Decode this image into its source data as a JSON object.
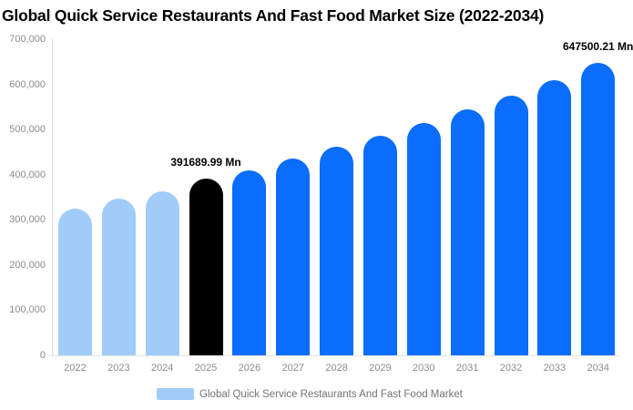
{
  "title": "Global Quick Service Restaurants And Fast Food Market Size (2022-2034)",
  "colors": {
    "historical_bar": "#a0ccfa",
    "base_year_bar": "#000000",
    "forecast_bar": "#0a6dfb",
    "axis_text": "#8c8c8c",
    "axis_line": "#dcdcdc",
    "label_text": "#000000",
    "legend_text": "#737373",
    "background": "#ffffff"
  },
  "chart_data": {
    "type": "bar",
    "title": "Global Quick Service Restaurants And Fast Food Market Size (2022-2034)",
    "xlabel": "",
    "ylabel": "",
    "unit": "Mn",
    "categories": [
      "2022",
      "2023",
      "2024",
      "2025",
      "2026",
      "2027",
      "2028",
      "2029",
      "2030",
      "2031",
      "2032",
      "2033",
      "2034"
    ],
    "values": [
      325000,
      348000,
      364000,
      391689.99,
      410000,
      436000,
      461000,
      487000,
      515000,
      544000,
      575000,
      610000,
      647500.21
    ],
    "bar_colors": [
      "#a0ccfa",
      "#a0ccfa",
      "#a0ccfa",
      "#000000",
      "#0a6dfb",
      "#0a6dfb",
      "#0a6dfb",
      "#0a6dfb",
      "#0a6dfb",
      "#0a6dfb",
      "#0a6dfb",
      "#0a6dfb",
      "#0a6dfb"
    ],
    "data_labels": [
      {
        "category": "2025",
        "text": "391689.99 Mn"
      },
      {
        "category": "2034",
        "text": "647500.21 Mn"
      }
    ],
    "ylim": [
      0,
      700000
    ],
    "y_ticks": [
      {
        "label": "0",
        "value": 0
      },
      {
        "label": "100,000",
        "value": 100000
      },
      {
        "label": "200,000",
        "value": 200000
      },
      {
        "label": "300,000",
        "value": 300000
      },
      {
        "label": "400,000",
        "value": 400000
      },
      {
        "label": "500,000",
        "value": 500000
      },
      {
        "label": "600,000",
        "value": 600000
      },
      {
        "label": "700,000",
        "value": 700000
      }
    ],
    "grid": false,
    "legend": {
      "position": "bottom",
      "label": "Global Quick Service Restaurants And Fast Food Market",
      "swatch_color": "#a0ccfa"
    }
  }
}
